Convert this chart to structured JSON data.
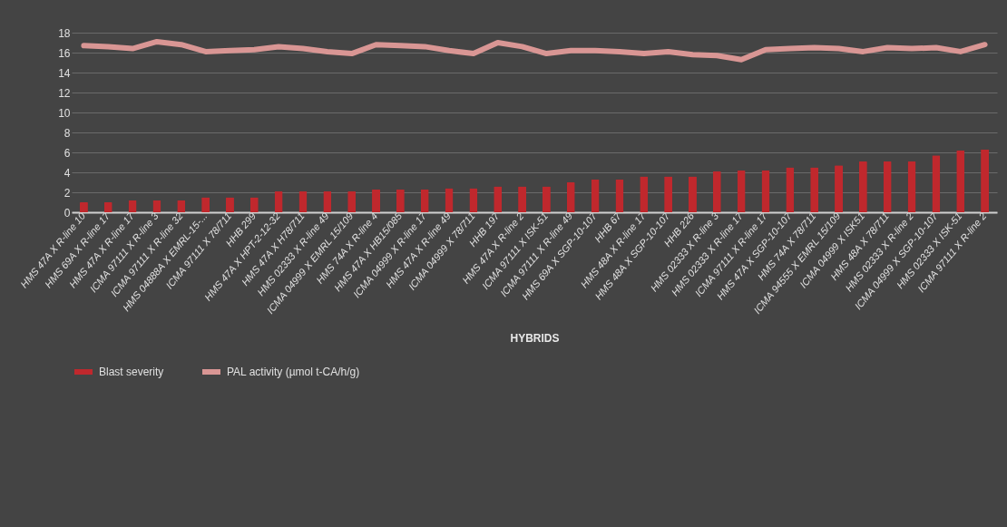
{
  "chart_data": {
    "type": "bar",
    "xlabel": "HYBRIDS",
    "categories": [
      "HMS 47A X R-line 10",
      "HMS 69A X R-line 17",
      "HMS 47A X R-line 17",
      "ICMA 97111 X R-line 3",
      "ICMA 97111 X R-line 32",
      "HMS 04888A X EMRL-15-...",
      "ICMA 97111 X 78/711",
      "HHB 299",
      "HMS 47A X  HPT-2-12-32",
      "HMS 47A X H78/711",
      "HMS 02333 X R-line 49",
      "ICMA 04999 X EMRL 15/109",
      "HMS 74A X R-line 4",
      "HMS 47A X  HB15/085",
      "ICMA 04999 X R-line 17",
      "HMS 47A X R-line 49",
      "ICMA 04999 X 78/711",
      "HHB 197",
      "HMS 47A X R-line 2",
      "ICMA 97111 X ISK-51",
      "ICMA 97111 X R-line 49",
      "HMS 69A X SGP-10-107",
      "HHB 67",
      "HMS 48A X R-line 17",
      "HMS 48A X SGP-10-107",
      "HHB 226",
      "HMS 02333 X R-line 3",
      "HMS 02333 X R-line 17",
      "ICMA 97111 X R-line 17",
      "HMS 47A X SGP-10-107",
      "HMS 74A X 78/711",
      "ICMA 94555 X EMRL 15/109",
      "ICMA 04999 X ISK51",
      "HMS 48A X 78/711",
      "HMS 02333 X R-line 2",
      "ICMA 04999 X SGP-10-107",
      "HMS 02333 X ISK-51",
      "ICMA 97111 X R-line 2"
    ],
    "series": [
      {
        "name": "Blast severity",
        "color": "#c0282d",
        "values": [
          1,
          1,
          1.2,
          1.2,
          1.2,
          1.5,
          1.5,
          1.5,
          2.1,
          2.1,
          2.1,
          2.1,
          2.3,
          2.3,
          2.3,
          2.4,
          2.4,
          2.6,
          2.6,
          2.6,
          3,
          3.3,
          3.3,
          3.6,
          3.6,
          3.6,
          4.1,
          4.2,
          4.2,
          4.5,
          4.5,
          4.7,
          5.1,
          5.1,
          5.1,
          5.7,
          6.2,
          6.3
        ]
      },
      {
        "name": "PAL activity (µmol t-CA/h/g)",
        "type": "line",
        "color": "#d99694",
        "values": [
          16.7,
          16.6,
          16.4,
          17.1,
          16.8,
          16.1,
          16.2,
          16.3,
          16.6,
          16.4,
          16.1,
          15.9,
          16.8,
          16.7,
          16.6,
          16.2,
          15.9,
          17,
          16.6,
          15.9,
          16.2,
          16.2,
          16.1,
          15.9,
          16.1,
          15.8,
          15.7,
          15.3,
          16.3,
          16.4,
          16.5,
          16.4,
          16.1,
          16.5,
          16.4,
          16.5,
          16.1,
          16.8
        ]
      }
    ],
    "ylim": [
      0,
      18
    ],
    "yticks": [
      0,
      2,
      4,
      6,
      8,
      10,
      12,
      14,
      16,
      18
    ],
    "grid": "y",
    "legend": "bottom"
  }
}
